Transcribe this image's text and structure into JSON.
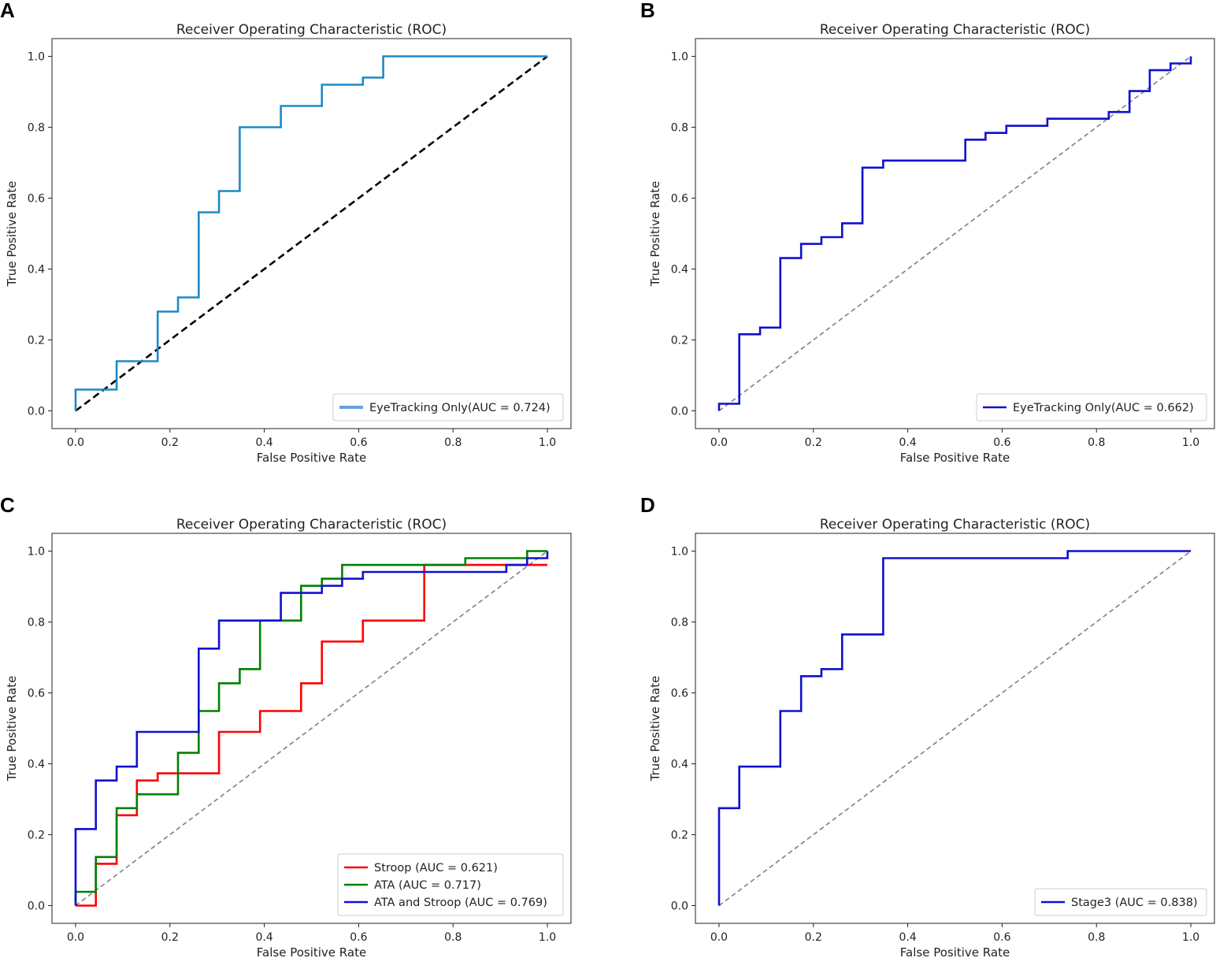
{
  "figure": {
    "panels": [
      "A",
      "B",
      "C",
      "D"
    ]
  },
  "chart_data": [
    {
      "panel": "A",
      "type": "line",
      "title": "Receiver Operating Characteristic (ROC)",
      "xlabel": "False Positive Rate",
      "ylabel": "True Positive Rate",
      "xlim": [
        0,
        1
      ],
      "ylim": [
        0,
        1
      ],
      "xticks": [
        "0.0",
        "0.2",
        "0.4",
        "0.6",
        "0.8",
        "1.0"
      ],
      "yticks": [
        "0.0",
        "0.2",
        "0.4",
        "0.6",
        "0.8",
        "1.0"
      ],
      "legend_position": "lower-right",
      "diagonal": {
        "color": "#000000",
        "dash": "dark"
      },
      "series": [
        {
          "name": "EyeTracking Only(AUC = 0.724)",
          "color": "#1f88c7",
          "legend_color": "#6a9fe0",
          "x": [
            0.0,
            0.0,
            0.087,
            0.087,
            0.174,
            0.174,
            0.217,
            0.217,
            0.261,
            0.261,
            0.304,
            0.304,
            0.348,
            0.348,
            0.435,
            0.435,
            0.522,
            0.522,
            0.609,
            0.609,
            0.652,
            0.652,
            1.0
          ],
          "y": [
            0.0,
            0.06,
            0.06,
            0.14,
            0.14,
            0.28,
            0.28,
            0.32,
            0.32,
            0.56,
            0.56,
            0.62,
            0.62,
            0.8,
            0.8,
            0.86,
            0.86,
            0.92,
            0.92,
            0.94,
            0.94,
            1.0,
            1.0
          ]
        }
      ]
    },
    {
      "panel": "B",
      "type": "line",
      "title": "Receiver Operating Characteristic (ROC)",
      "xlabel": "False Positive Rate",
      "ylabel": "True Positive Rate",
      "xlim": [
        0,
        1
      ],
      "ylim": [
        0,
        1
      ],
      "xticks": [
        "0.0",
        "0.2",
        "0.4",
        "0.6",
        "0.8",
        "1.0"
      ],
      "yticks": [
        "0.0",
        "0.2",
        "0.4",
        "0.6",
        "0.8",
        "1.0"
      ],
      "legend_position": "lower-right",
      "diagonal": {
        "color": "#808080",
        "dash": "grey"
      },
      "series": [
        {
          "name": "EyeTracking Only(AUC = 0.662)",
          "color": "#1010d0",
          "legend_color": "#1010d0",
          "x": [
            0.0,
            0.0,
            0.043,
            0.043,
            0.087,
            0.087,
            0.13,
            0.13,
            0.174,
            0.174,
            0.217,
            0.217,
            0.261,
            0.261,
            0.304,
            0.304,
            0.348,
            0.348,
            0.522,
            0.522,
            0.565,
            0.565,
            0.609,
            0.609,
            0.696,
            0.696,
            0.826,
            0.826,
            0.87,
            0.87,
            0.913,
            0.913,
            0.957,
            0.957,
            1.0,
            1.0
          ],
          "y": [
            0.0,
            0.02,
            0.02,
            0.216,
            0.216,
            0.235,
            0.235,
            0.431,
            0.431,
            0.471,
            0.471,
            0.49,
            0.49,
            0.529,
            0.529,
            0.686,
            0.686,
            0.706,
            0.706,
            0.765,
            0.765,
            0.784,
            0.784,
            0.804,
            0.804,
            0.824,
            0.824,
            0.843,
            0.843,
            0.902,
            0.902,
            0.961,
            0.961,
            0.98,
            0.98,
            1.0
          ]
        }
      ]
    },
    {
      "panel": "C",
      "type": "line",
      "title": "Receiver Operating Characteristic (ROC)",
      "xlabel": "False Positive Rate",
      "ylabel": "True Positive Rate",
      "xlim": [
        0,
        1
      ],
      "ylim": [
        0,
        1
      ],
      "xticks": [
        "0.0",
        "0.2",
        "0.4",
        "0.6",
        "0.8",
        "1.0"
      ],
      "yticks": [
        "0.0",
        "0.2",
        "0.4",
        "0.6",
        "0.8",
        "1.0"
      ],
      "legend_position": "lower-right",
      "diagonal": {
        "color": "#808080",
        "dash": "grey"
      },
      "series": [
        {
          "name": "Stroop (AUC = 0.621)",
          "color": "#ff0000",
          "legend_color": "#ff0000",
          "x": [
            0.0,
            0.043,
            0.043,
            0.087,
            0.087,
            0.13,
            0.13,
            0.174,
            0.174,
            0.304,
            0.304,
            0.391,
            0.391,
            0.478,
            0.478,
            0.522,
            0.522,
            0.609,
            0.609,
            0.739,
            0.739,
            1.0
          ],
          "y": [
            0.0,
            0.0,
            0.118,
            0.118,
            0.255,
            0.255,
            0.353,
            0.353,
            0.373,
            0.373,
            0.49,
            0.49,
            0.549,
            0.549,
            0.627,
            0.627,
            0.745,
            0.745,
            0.804,
            0.804,
            0.961,
            0.961
          ]
        },
        {
          "name": "ATA (AUC = 0.717)",
          "color": "#008000",
          "legend_color": "#008000",
          "x": [
            0.0,
            0.0,
            0.043,
            0.043,
            0.087,
            0.087,
            0.13,
            0.13,
            0.217,
            0.217,
            0.261,
            0.261,
            0.304,
            0.304,
            0.348,
            0.348,
            0.391,
            0.391,
            0.478,
            0.478,
            0.522,
            0.522,
            0.565,
            0.565,
            0.826,
            0.826,
            0.957,
            0.957,
            1.0
          ],
          "y": [
            0.0,
            0.039,
            0.039,
            0.137,
            0.137,
            0.275,
            0.275,
            0.314,
            0.314,
            0.431,
            0.431,
            0.549,
            0.549,
            0.627,
            0.627,
            0.667,
            0.667,
            0.804,
            0.804,
            0.902,
            0.902,
            0.922,
            0.922,
            0.961,
            0.961,
            0.98,
            0.98,
            1.0,
            1.0
          ]
        },
        {
          "name": "ATA and Stroop (AUC = 0.769)",
          "color": "#1010d0",
          "legend_color": "#1010d0",
          "x": [
            0.0,
            0.0,
            0.043,
            0.043,
            0.087,
            0.087,
            0.13,
            0.13,
            0.261,
            0.261,
            0.304,
            0.304,
            0.435,
            0.435,
            0.522,
            0.522,
            0.565,
            0.565,
            0.609,
            0.609,
            0.913,
            0.913,
            0.957,
            0.957,
            1.0,
            1.0
          ],
          "y": [
            0.0,
            0.216,
            0.216,
            0.353,
            0.353,
            0.392,
            0.392,
            0.49,
            0.49,
            0.725,
            0.725,
            0.804,
            0.804,
            0.882,
            0.882,
            0.902,
            0.902,
            0.922,
            0.922,
            0.941,
            0.941,
            0.961,
            0.961,
            0.98,
            0.98,
            1.0
          ]
        }
      ]
    },
    {
      "panel": "D",
      "type": "line",
      "title": "Receiver Operating Characteristic (ROC)",
      "xlabel": "False Positive Rate",
      "ylabel": "True Positive Rate",
      "xlim": [
        0,
        1
      ],
      "ylim": [
        0,
        1
      ],
      "xticks": [
        "0.0",
        "0.2",
        "0.4",
        "0.6",
        "0.8",
        "1.0"
      ],
      "yticks": [
        "0.0",
        "0.2",
        "0.4",
        "0.6",
        "0.8",
        "1.0"
      ],
      "legend_position": "lower-right",
      "diagonal": {
        "color": "#808080",
        "dash": "grey"
      },
      "series": [
        {
          "name": "Stage3 (AUC = 0.838)",
          "color": "#1010d0",
          "legend_color": "#1010d0",
          "x": [
            0.0,
            0.0,
            0.043,
            0.043,
            0.13,
            0.13,
            0.174,
            0.174,
            0.217,
            0.217,
            0.261,
            0.261,
            0.348,
            0.348,
            0.739,
            0.739,
            1.0
          ],
          "y": [
            0.0,
            0.275,
            0.275,
            0.392,
            0.392,
            0.549,
            0.549,
            0.647,
            0.647,
            0.667,
            0.667,
            0.765,
            0.765,
            0.98,
            0.98,
            1.0,
            1.0
          ]
        }
      ]
    }
  ]
}
